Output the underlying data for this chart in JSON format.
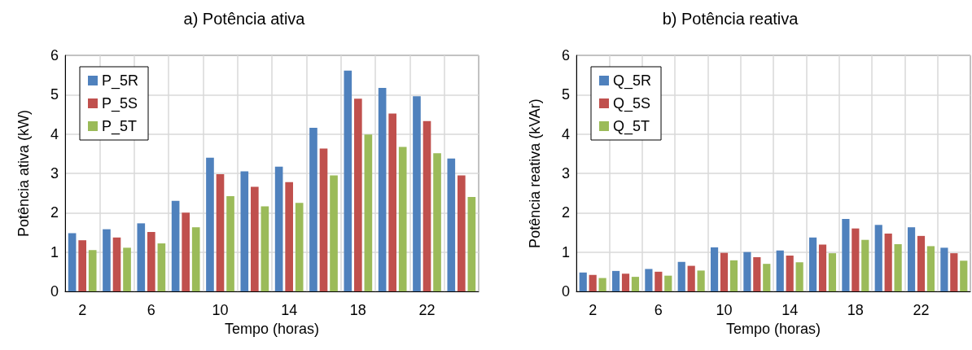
{
  "chart_data": [
    {
      "type": "bar",
      "title": "a) Potência ativa",
      "xlabel": "Tempo (horas)",
      "ylabel": "Potência ativa (kW)",
      "categories": [
        "2",
        null,
        "6",
        null,
        "10",
        null,
        "14",
        null,
        "18",
        null,
        "22",
        null
      ],
      "series": [
        {
          "name": "P_5R",
          "color": "#4f81bd",
          "values": [
            1.48,
            1.58,
            1.73,
            2.3,
            3.4,
            3.05,
            3.17,
            4.16,
            5.61,
            5.17,
            4.96,
            3.38
          ]
        },
        {
          "name": "P_5S",
          "color": "#c0504d",
          "values": [
            1.3,
            1.37,
            1.51,
            2.0,
            2.98,
            2.66,
            2.78,
            3.63,
            4.9,
            4.52,
            4.33,
            2.95
          ]
        },
        {
          "name": "P_5T",
          "color": "#9bbb59",
          "values": [
            1.05,
            1.11,
            1.22,
            1.63,
            2.42,
            2.16,
            2.25,
            2.95,
            3.99,
            3.67,
            3.51,
            2.4
          ]
        }
      ],
      "ylim": [
        0,
        6
      ],
      "yticks": [
        0,
        1,
        2,
        3,
        4,
        5,
        6
      ],
      "grid": true,
      "legend": "top left"
    },
    {
      "type": "bar",
      "title": "b) Potência reativa",
      "xlabel": "Tempo (horas)",
      "ylabel": "Potência reativa (kVAr)",
      "categories": [
        "2",
        null,
        "6",
        null,
        "10",
        null,
        "14",
        null,
        "18",
        null,
        "22",
        null
      ],
      "series": [
        {
          "name": "Q_5R",
          "color": "#4f81bd",
          "values": [
            0.48,
            0.52,
            0.57,
            0.75,
            1.12,
            1.0,
            1.04,
            1.37,
            1.84,
            1.69,
            1.63,
            1.11
          ]
        },
        {
          "name": "Q_5S",
          "color": "#c0504d",
          "values": [
            0.42,
            0.45,
            0.5,
            0.65,
            0.98,
            0.87,
            0.91,
            1.19,
            1.6,
            1.47,
            1.41,
            0.97
          ]
        },
        {
          "name": "Q_5T",
          "color": "#9bbb59",
          "values": [
            0.34,
            0.37,
            0.4,
            0.53,
            0.79,
            0.7,
            0.74,
            0.97,
            1.31,
            1.2,
            1.15,
            0.78
          ]
        }
      ],
      "ylim": [
        0,
        6
      ],
      "yticks": [
        0,
        1,
        2,
        3,
        4,
        5,
        6
      ],
      "grid": true,
      "legend": "top left"
    }
  ]
}
